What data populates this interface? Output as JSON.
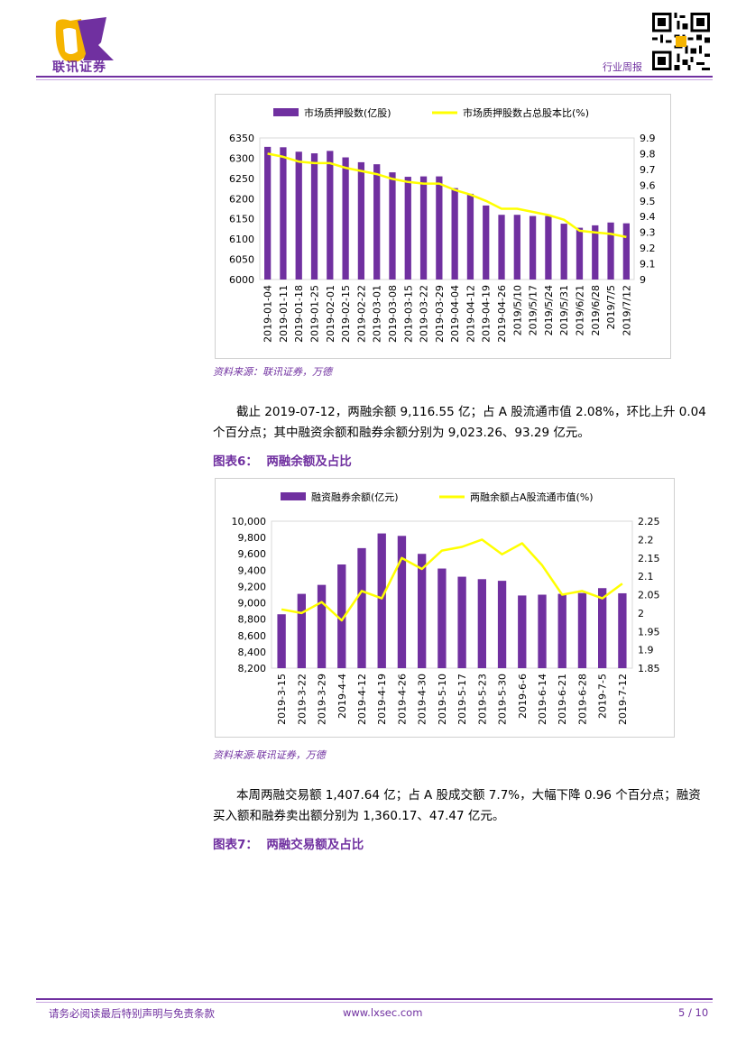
{
  "header": {
    "company": "联讯证券",
    "report_type": "行业周报"
  },
  "charts": [
    {
      "type": "bar",
      "legend": [
        "市场质押股数(亿股)",
        "市场质押股数占总股本比(%)"
      ],
      "categories": [
        "2019-01-04",
        "2019-01-11",
        "2019-01-18",
        "2019-01-25",
        "2019-02-01",
        "2019-02-15",
        "2019-02-22",
        "2019-03-01",
        "2019-03-08",
        "2019-03-15",
        "2019-03-22",
        "2019-03-29",
        "2019-04-04",
        "2019-04-12",
        "2019-04-19",
        "2019-04-26",
        "2019/5/10",
        "2019/5/17",
        "2019/5/24",
        "2019/5/31",
        "2019/6/21",
        "2019/6/28",
        "2019/7/5",
        "2019/7/12"
      ],
      "ticks_left": [
        "6350",
        "6300",
        "6250",
        "6200",
        "6150",
        "6100",
        "6050",
        "6000"
      ],
      "ticks_right": [
        "9.9",
        "9.8",
        "9.7",
        "9.6",
        "9.5",
        "9.4",
        "9.3",
        "9.2",
        "9.1",
        "9"
      ]
    },
    {
      "type": "bar",
      "legend": [
        "融资融券余额(亿元)",
        "两融余额占A股流通市值(%)"
      ],
      "categories": [
        "2019-3-15",
        "2019-3-22",
        "2019-3-29",
        "2019-4-4",
        "2019-4-12",
        "2019-4-19",
        "2019-4-26",
        "2019-4-30",
        "2019-5-10",
        "2019-5-17",
        "2019-5-23",
        "2019-5-30",
        "2019-6-6",
        "2019-6-14",
        "2019-6-21",
        "2019-6-28",
        "2019-7-5",
        "2019-7-12"
      ],
      "ticks_left": [
        "10,000",
        "9,800",
        "9,600",
        "9,400",
        "9,200",
        "9,000",
        "8,800",
        "8,600",
        "8,400",
        "8,200"
      ],
      "ticks_right": [
        "2.25",
        "2.2",
        "2.15",
        "2.1",
        "2.05",
        "2",
        "1.95",
        "1.9",
        "1.85"
      ]
    }
  ],
  "chart_data": [
    {
      "type": "bar",
      "categories": [
        "2019-01-04",
        "2019-01-11",
        "2019-01-18",
        "2019-01-25",
        "2019-02-01",
        "2019-02-15",
        "2019-02-22",
        "2019-03-01",
        "2019-03-08",
        "2019-03-15",
        "2019-03-22",
        "2019-03-29",
        "2019-04-04",
        "2019-04-12",
        "2019-04-19",
        "2019-04-26",
        "2019/5/10",
        "2019/5/17",
        "2019/5/24",
        "2019/5/31",
        "2019/6/21",
        "2019/6/28",
        "2019/7/5",
        "2019/7/12"
      ],
      "series": [
        {
          "name": "市场质押股数(亿股)",
          "type": "bar",
          "axis": "left",
          "values": [
            6328,
            6327,
            6316,
            6312,
            6318,
            6302,
            6290,
            6285,
            6265,
            6254,
            6255,
            6255,
            6226,
            6212,
            6183,
            6160,
            6160,
            6157,
            6157,
            6138,
            6128,
            6134,
            6141,
            6139
          ]
        },
        {
          "name": "市场质押股数占总股本比(%)",
          "type": "line",
          "axis": "right",
          "values": [
            9.8,
            9.78,
            9.75,
            9.74,
            9.74,
            9.71,
            9.69,
            9.67,
            9.64,
            9.62,
            9.61,
            9.61,
            9.57,
            9.54,
            9.5,
            9.45,
            9.45,
            9.43,
            9.41,
            9.38,
            9.31,
            9.3,
            9.29,
            9.27
          ]
        }
      ],
      "ylim_left": [
        6000,
        6350
      ],
      "ylim_right": [
        9.0,
        9.9
      ],
      "legend": "top",
      "grid": false
    },
    {
      "type": "bar",
      "categories": [
        "2019-3-15",
        "2019-3-22",
        "2019-3-29",
        "2019-4-4",
        "2019-4-12",
        "2019-4-19",
        "2019-4-26",
        "2019-4-30",
        "2019-5-10",
        "2019-5-17",
        "2019-5-23",
        "2019-5-30",
        "2019-6-6",
        "2019-6-14",
        "2019-6-21",
        "2019-6-28",
        "2019-7-5",
        "2019-7-12"
      ],
      "series": [
        {
          "name": "融资融券余额(亿元)",
          "type": "bar",
          "axis": "left",
          "values": [
            8860,
            9110,
            9220,
            9470,
            9670,
            9850,
            9820,
            9600,
            9420,
            9320,
            9290,
            9270,
            9090,
            9100,
            9110,
            9120,
            9180,
            9117
          ]
        },
        {
          "name": "两融余额占A股流通市值(%)",
          "type": "line",
          "axis": "right",
          "values": [
            2.01,
            2.0,
            2.03,
            1.98,
            2.06,
            2.04,
            2.15,
            2.12,
            2.17,
            2.18,
            2.2,
            2.16,
            2.19,
            2.13,
            2.05,
            2.06,
            2.04,
            2.08
          ]
        }
      ],
      "ylim_left": [
        8200,
        10000
      ],
      "ylim_right": [
        1.85,
        2.25
      ],
      "legend": "top",
      "grid": false
    }
  ],
  "sources": [
    "资料来源：联讯证券，万德",
    "资料来源:联讯证券，万德"
  ],
  "paragraphs": [
    {
      "line1": "截止 2019-07-12，两融余额 9,116.55 亿；占 A 股流通市值 2.08%，环比上升 0.04",
      "line2": "个百分点；其中融资余额和融券余额分别为 9,023.26、93.29 亿元。"
    },
    {
      "line1": "本周两融交易额 1,407.64 亿；占 A 股成交额 7.7%，大幅下降 0.96 个百分点；融资",
      "line2": "买入额和融券卖出额分别为 1,360.17、47.47 亿元。"
    }
  ],
  "figures": [
    {
      "label": "图表6：",
      "title": "两融余额及占比"
    },
    {
      "label": "图表7：",
      "title": "两融交易额及占比"
    }
  ],
  "footer": {
    "disclaimer": "请务必阅读最后特别声明与免责条款",
    "website": "www.lxsec.com",
    "page": "5 / 10"
  },
  "colors": {
    "bar": "#7030a0",
    "line": "#ffff00",
    "accent": "#7030a0"
  }
}
